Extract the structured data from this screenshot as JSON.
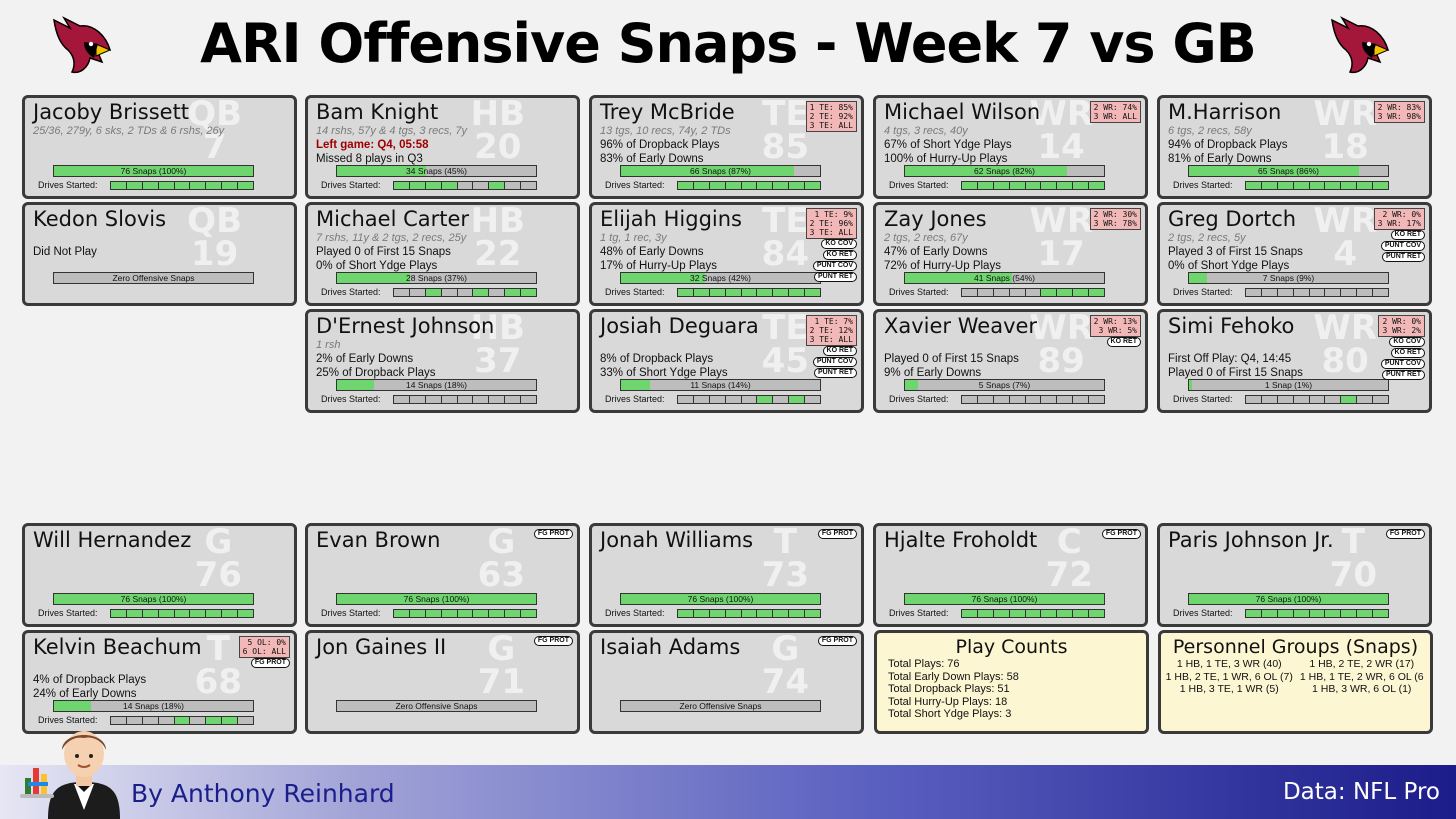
{
  "title": "ARI Offensive Snaps - Week 7 vs GB",
  "footer": {
    "author": "By Anthony Reinhard",
    "source": "Data: NFL Pro"
  },
  "drives_label": "Drives Started:",
  "total_snaps": 76,
  "players": [
    {
      "name": "Jacoby Brissett",
      "pos": "QB",
      "num": "7",
      "sub": "25/36, 279y, 6 sks, 2 TDs & 6 rshs, 26y",
      "lines": [],
      "snaps": 76,
      "snaps_label": "76 Snaps (100%)",
      "pct": "",
      "badges": [],
      "drives": [
        1,
        1,
        1,
        1,
        1,
        1,
        1,
        1,
        1
      ]
    },
    {
      "name": "Bam Knight",
      "pos": "HB",
      "num": "20",
      "sub": "14 rshs, 57y & 4 tgs, 3 recs, 7y",
      "lines": [
        {
          "t": "Left game: Q4, 05:58",
          "red": true
        },
        {
          "t": "Missed 8 plays in Q3"
        }
      ],
      "snaps": 34,
      "snaps_label": "34 Snaps (45%)",
      "pct": "",
      "badges": [],
      "drives": [
        1,
        1,
        1,
        1,
        0,
        0,
        1,
        0,
        0
      ]
    },
    {
      "name": "Trey McBride",
      "pos": "TE",
      "num": "85",
      "sub": "13 tgs, 10 recs, 74y, 2 TDs",
      "lines": [
        {
          "t": "96% of Dropback Plays"
        },
        {
          "t": "83% of Early Downs"
        }
      ],
      "snaps": 66,
      "snaps_label": "66 Snaps (87%)",
      "pct": "1 TE: 85%\n2 TE: 92%\n3 TE: ALL",
      "badges": [],
      "drives": [
        1,
        1,
        1,
        1,
        1,
        1,
        1,
        1,
        1
      ]
    },
    {
      "name": "Michael Wilson",
      "pos": "WR",
      "num": "14",
      "sub": "4 tgs, 3 recs, 40y",
      "lines": [
        {
          "t": "67% of Short Ydge Plays"
        },
        {
          "t": "100% of Hurry-Up Plays"
        }
      ],
      "snaps": 62,
      "snaps_label": "62 Snaps (82%)",
      "pct": "2 WR: 74%\n3 WR: ALL",
      "badges": [],
      "drives": [
        1,
        1,
        1,
        1,
        1,
        1,
        1,
        1,
        1
      ]
    },
    {
      "name": "M.Harrison",
      "pos": "WR",
      "num": "18",
      "sub": "6 tgs, 2 recs, 58y",
      "lines": [
        {
          "t": "94% of Dropback Plays"
        },
        {
          "t": "81% of Early Downs"
        }
      ],
      "snaps": 65,
      "snaps_label": "65 Snaps (86%)",
      "pct": "2 WR: 83%\n3 WR: 98%",
      "badges": [],
      "drives": [
        1,
        1,
        1,
        1,
        1,
        1,
        1,
        1,
        1
      ]
    },
    {
      "name": "Kedon Slovis",
      "pos": "QB",
      "num": "19",
      "sub": "",
      "lines": [
        {
          "t": "Did Not Play"
        }
      ],
      "snaps": 0,
      "snaps_label": "Zero Offensive Snaps",
      "pct": "",
      "badges": [],
      "drives": null
    },
    {
      "name": "Michael Carter",
      "pos": "HB",
      "num": "22",
      "sub": "7 rshs, 11y & 2 tgs, 2 recs, 25y",
      "lines": [
        {
          "t": "Played 0 of First 15 Snaps"
        },
        {
          "t": "0% of Short Ydge Plays"
        }
      ],
      "snaps": 28,
      "snaps_label": "28 Snaps (37%)",
      "pct": "",
      "badges": [],
      "drives": [
        0,
        0,
        1,
        0,
        0,
        1,
        0,
        1,
        1
      ]
    },
    {
      "name": "Elijah Higgins",
      "pos": "TE",
      "num": "84",
      "sub": "1 tg, 1 rec, 3y",
      "lines": [
        {
          "t": "48% of Early Downs"
        },
        {
          "t": "17% of Hurry-Up Plays"
        }
      ],
      "snaps": 32,
      "snaps_label": "32 Snaps (42%)",
      "pct": "1 TE:  9%\n2 TE: 96%\n3 TE: ALL",
      "badges": [
        "KO COV",
        "KO RET",
        "PUNT COV",
        "PUNT RET"
      ],
      "drives": [
        1,
        1,
        1,
        1,
        1,
        1,
        1,
        1,
        1
      ]
    },
    {
      "name": "Zay Jones",
      "pos": "WR",
      "num": "17",
      "sub": "2 tgs, 2 recs, 67y",
      "lines": [
        {
          "t": "47% of Early Downs"
        },
        {
          "t": "72% of Hurry-Up Plays"
        }
      ],
      "snaps": 41,
      "snaps_label": "41 Snaps (54%)",
      "pct": "2 WR: 30%\n3 WR: 78%",
      "badges": [],
      "drives": [
        0,
        0,
        0,
        0,
        0,
        1,
        1,
        1,
        1
      ]
    },
    {
      "name": "Greg Dortch",
      "pos": "WR",
      "num": "4",
      "sub": "2 tgs, 2 recs, 5y",
      "lines": [
        {
          "t": "Played 3 of First 15 Snaps"
        },
        {
          "t": "0% of Short Ydge Plays"
        }
      ],
      "snaps": 7,
      "snaps_label": "7 Snaps (9%)",
      "pct": "2 WR:  0%\n3 WR: 17%",
      "badges": [
        "KO RET",
        "PUNT COV",
        "PUNT RET"
      ],
      "drives": [
        0,
        0,
        0,
        0,
        0,
        0,
        0,
        0,
        0
      ]
    },
    {
      "name": "D'Ernest Johnson",
      "pos": "HB",
      "num": "37",
      "sub": "1 rsh",
      "lines": [
        {
          "t": "2% of Early Downs"
        },
        {
          "t": "25% of Dropback Plays"
        }
      ],
      "snaps": 14,
      "snaps_label": "14 Snaps (18%)",
      "pct": "",
      "badges": [],
      "drives": [
        0,
        0,
        0,
        0,
        0,
        0,
        0,
        0,
        0
      ]
    },
    {
      "name": "Josiah Deguara",
      "pos": "TE",
      "num": "45",
      "sub": "",
      "lines": [
        {
          "t": "8% of Dropback Plays"
        },
        {
          "t": "33% of Short Ydge Plays"
        }
      ],
      "snaps": 11,
      "snaps_label": "11 Snaps (14%)",
      "pct": "1 TE:  7%\n2 TE: 12%\n3 TE: ALL",
      "badges": [
        "KO RET",
        "PUNT COV",
        "PUNT RET"
      ],
      "drives": [
        0,
        0,
        0,
        0,
        0,
        1,
        0,
        1,
        0
      ]
    },
    {
      "name": "Xavier Weaver",
      "pos": "WR",
      "num": "89",
      "sub": "",
      "lines": [
        {
          "t": "Played 0 of First 15 Snaps"
        },
        {
          "t": "9% of Early Downs"
        }
      ],
      "snaps": 5,
      "snaps_label": "5 Snaps (7%)",
      "pct": "2 WR: 13%\n3 WR:  5%",
      "badges": [
        "KO RET"
      ],
      "drives": [
        0,
        0,
        0,
        0,
        0,
        0,
        0,
        0,
        0
      ]
    },
    {
      "name": "Simi Fehoko",
      "pos": "WR",
      "num": "80",
      "sub": "",
      "lines": [
        {
          "t": "First Off Play: Q4, 14:45"
        },
        {
          "t": "Played 0 of First 15 Snaps"
        }
      ],
      "snaps": 1,
      "snaps_label": "1 Snap (1%)",
      "pct": "2 WR:  0%\n3 WR:  2%",
      "badges": [
        "KO COV",
        "KO RET",
        "PUNT COV",
        "PUNT RET"
      ],
      "drives": [
        0,
        0,
        0,
        0,
        0,
        0,
        1,
        0,
        0
      ]
    },
    {
      "name": "Will Hernandez",
      "pos": "G",
      "num": "76",
      "sub": "",
      "lines": [],
      "snaps": 76,
      "snaps_label": "76 Snaps (100%)",
      "pct": "",
      "badges": [],
      "drives": [
        1,
        1,
        1,
        1,
        1,
        1,
        1,
        1,
        1
      ]
    },
    {
      "name": "Evan Brown",
      "pos": "G",
      "num": "63",
      "sub": "",
      "lines": [],
      "snaps": 76,
      "snaps_label": "76 Snaps (100%)",
      "pct": "",
      "badges": [
        "FG PROT"
      ],
      "drives": [
        1,
        1,
        1,
        1,
        1,
        1,
        1,
        1,
        1
      ]
    },
    {
      "name": "Jonah Williams",
      "pos": "T",
      "num": "73",
      "sub": "",
      "lines": [],
      "snaps": 76,
      "snaps_label": "76 Snaps (100%)",
      "pct": "",
      "badges": [
        "FG PROT"
      ],
      "drives": [
        1,
        1,
        1,
        1,
        1,
        1,
        1,
        1,
        1
      ]
    },
    {
      "name": "Hjalte Froholdt",
      "pos": "C",
      "num": "72",
      "sub": "",
      "lines": [],
      "snaps": 76,
      "snaps_label": "76 Snaps (100%)",
      "pct": "",
      "badges": [
        "FG PROT"
      ],
      "drives": [
        1,
        1,
        1,
        1,
        1,
        1,
        1,
        1,
        1
      ]
    },
    {
      "name": "Paris Johnson Jr.",
      "pos": "T",
      "num": "70",
      "sub": "",
      "lines": [],
      "snaps": 76,
      "snaps_label": "76 Snaps (100%)",
      "pct": "",
      "badges": [
        "FG PROT"
      ],
      "drives": [
        1,
        1,
        1,
        1,
        1,
        1,
        1,
        1,
        1
      ]
    },
    {
      "name": "Kelvin Beachum",
      "pos": "T",
      "num": "68",
      "sub": "",
      "lines": [
        {
          "t": "4% of Dropback Plays"
        },
        {
          "t": "24% of Early Downs"
        }
      ],
      "snaps": 14,
      "snaps_label": "14 Snaps (18%)",
      "pct": "5 OL:  0%\n6 OL: ALL",
      "badges": [
        "FG PROT"
      ],
      "drives": [
        0,
        0,
        0,
        0,
        1,
        0,
        1,
        1,
        0
      ]
    },
    {
      "name": "Jon Gaines II",
      "pos": "G",
      "num": "71",
      "sub": "",
      "lines": [],
      "snaps": 0,
      "snaps_label": "Zero Offensive Snaps",
      "pct": "",
      "badges": [
        "FG PROT"
      ],
      "drives": null
    },
    {
      "name": "Isaiah Adams",
      "pos": "G",
      "num": "74",
      "sub": "",
      "lines": [],
      "snaps": 0,
      "snaps_label": "Zero Offensive Snaps",
      "pct": "",
      "badges": [
        "FG PROT"
      ],
      "drives": null
    }
  ],
  "play_counts": {
    "title": "Play Counts",
    "lines": [
      "Total Plays: 76",
      "Total Early Down Plays: 58",
      "Total Dropback Plays: 51",
      "Total Hurry-Up Plays: 18",
      "Total Short Ydge Plays: 3"
    ]
  },
  "personnel": {
    "title": "Personnel Groups (Snaps)",
    "items": [
      "1 HB, 1 TE, 3 WR (40)",
      "1 HB, 2 TE, 2 WR (17)",
      "1 HB, 2 TE, 1 WR, 6 OL (7)",
      "1 HB, 1 TE, 2 WR, 6 OL (6",
      "1 HB, 3 TE, 1 WR (5)",
      "1 HB, 3 WR, 6 OL (1)"
    ]
  }
}
